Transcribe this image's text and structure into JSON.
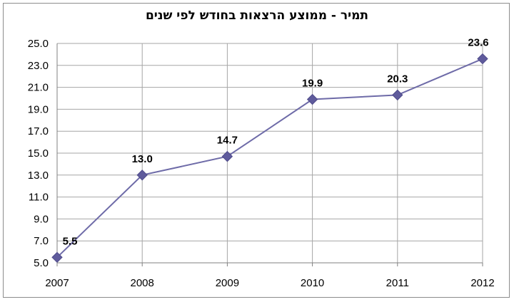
{
  "chart_data": {
    "type": "line",
    "title": "תמיר - ממוצע הרצאות בחודש לפי שנים",
    "xlabel": "",
    "ylabel": "",
    "categories": [
      "2007",
      "2008",
      "2009",
      "2010",
      "2011",
      "2012"
    ],
    "series": [
      {
        "values": [
          5.5,
          13.0,
          14.7,
          19.9,
          20.3,
          23.6
        ]
      }
    ],
    "data_labels": [
      "5.5",
      "13.0",
      "14.7",
      "19.9",
      "20.3",
      "23.6"
    ],
    "y_ticks": [
      "5.0",
      "7.0",
      "9.0",
      "11.0",
      "13.0",
      "15.0",
      "17.0",
      "19.0",
      "21.0",
      "23.0",
      "25.0"
    ],
    "ylim": [
      5.0,
      25.0
    ],
    "grid": true,
    "line_color": "#6e6ba8",
    "marker_color": "#5f5b9c",
    "grid_color": "#a6a6a6"
  }
}
